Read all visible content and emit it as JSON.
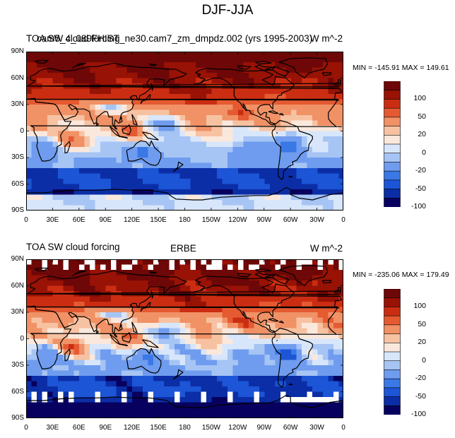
{
  "figure": {
    "title": "DJF-JJA",
    "palette": [
      "#08005e",
      "#0b2ea6",
      "#1c55d6",
      "#3a78e6",
      "#6f9cee",
      "#a6c4f4",
      "#d8e6fb",
      "#fbe8dc",
      "#f7c2a2",
      "#f09166",
      "#e55a31",
      "#cb2d12",
      "#981205",
      "#6e0707"
    ],
    "colorbar_labels": [
      "100",
      "50",
      "20",
      "0",
      "-20",
      "-50",
      "-100"
    ]
  },
  "panels": [
    {
      "id": "model",
      "left_title": "TOA SW cloud forcing",
      "center_title": "cam5_4_089FHIST_ne30.cam7_zm_dmpdz.002 (yrs 1995-2003)",
      "units": "W m^-2",
      "minmax": "MIN = -145.91 MAX = 149.61"
    },
    {
      "id": "obs",
      "left_title": "TOA SW cloud forcing",
      "center_title": "ERBE",
      "units": "W m^-2",
      "minmax": "MIN = -235.06 MAX = 179.49"
    }
  ],
  "axes": {
    "lat_labels": [
      "90N",
      "60N",
      "30N",
      "0",
      "30S",
      "60S",
      "90S"
    ],
    "lon_labels": [
      "0",
      "30E",
      "60E",
      "90E",
      "120E",
      "150E",
      "180",
      "150W",
      "120W",
      "90W",
      "60W",
      "30W",
      "0"
    ]
  }
}
